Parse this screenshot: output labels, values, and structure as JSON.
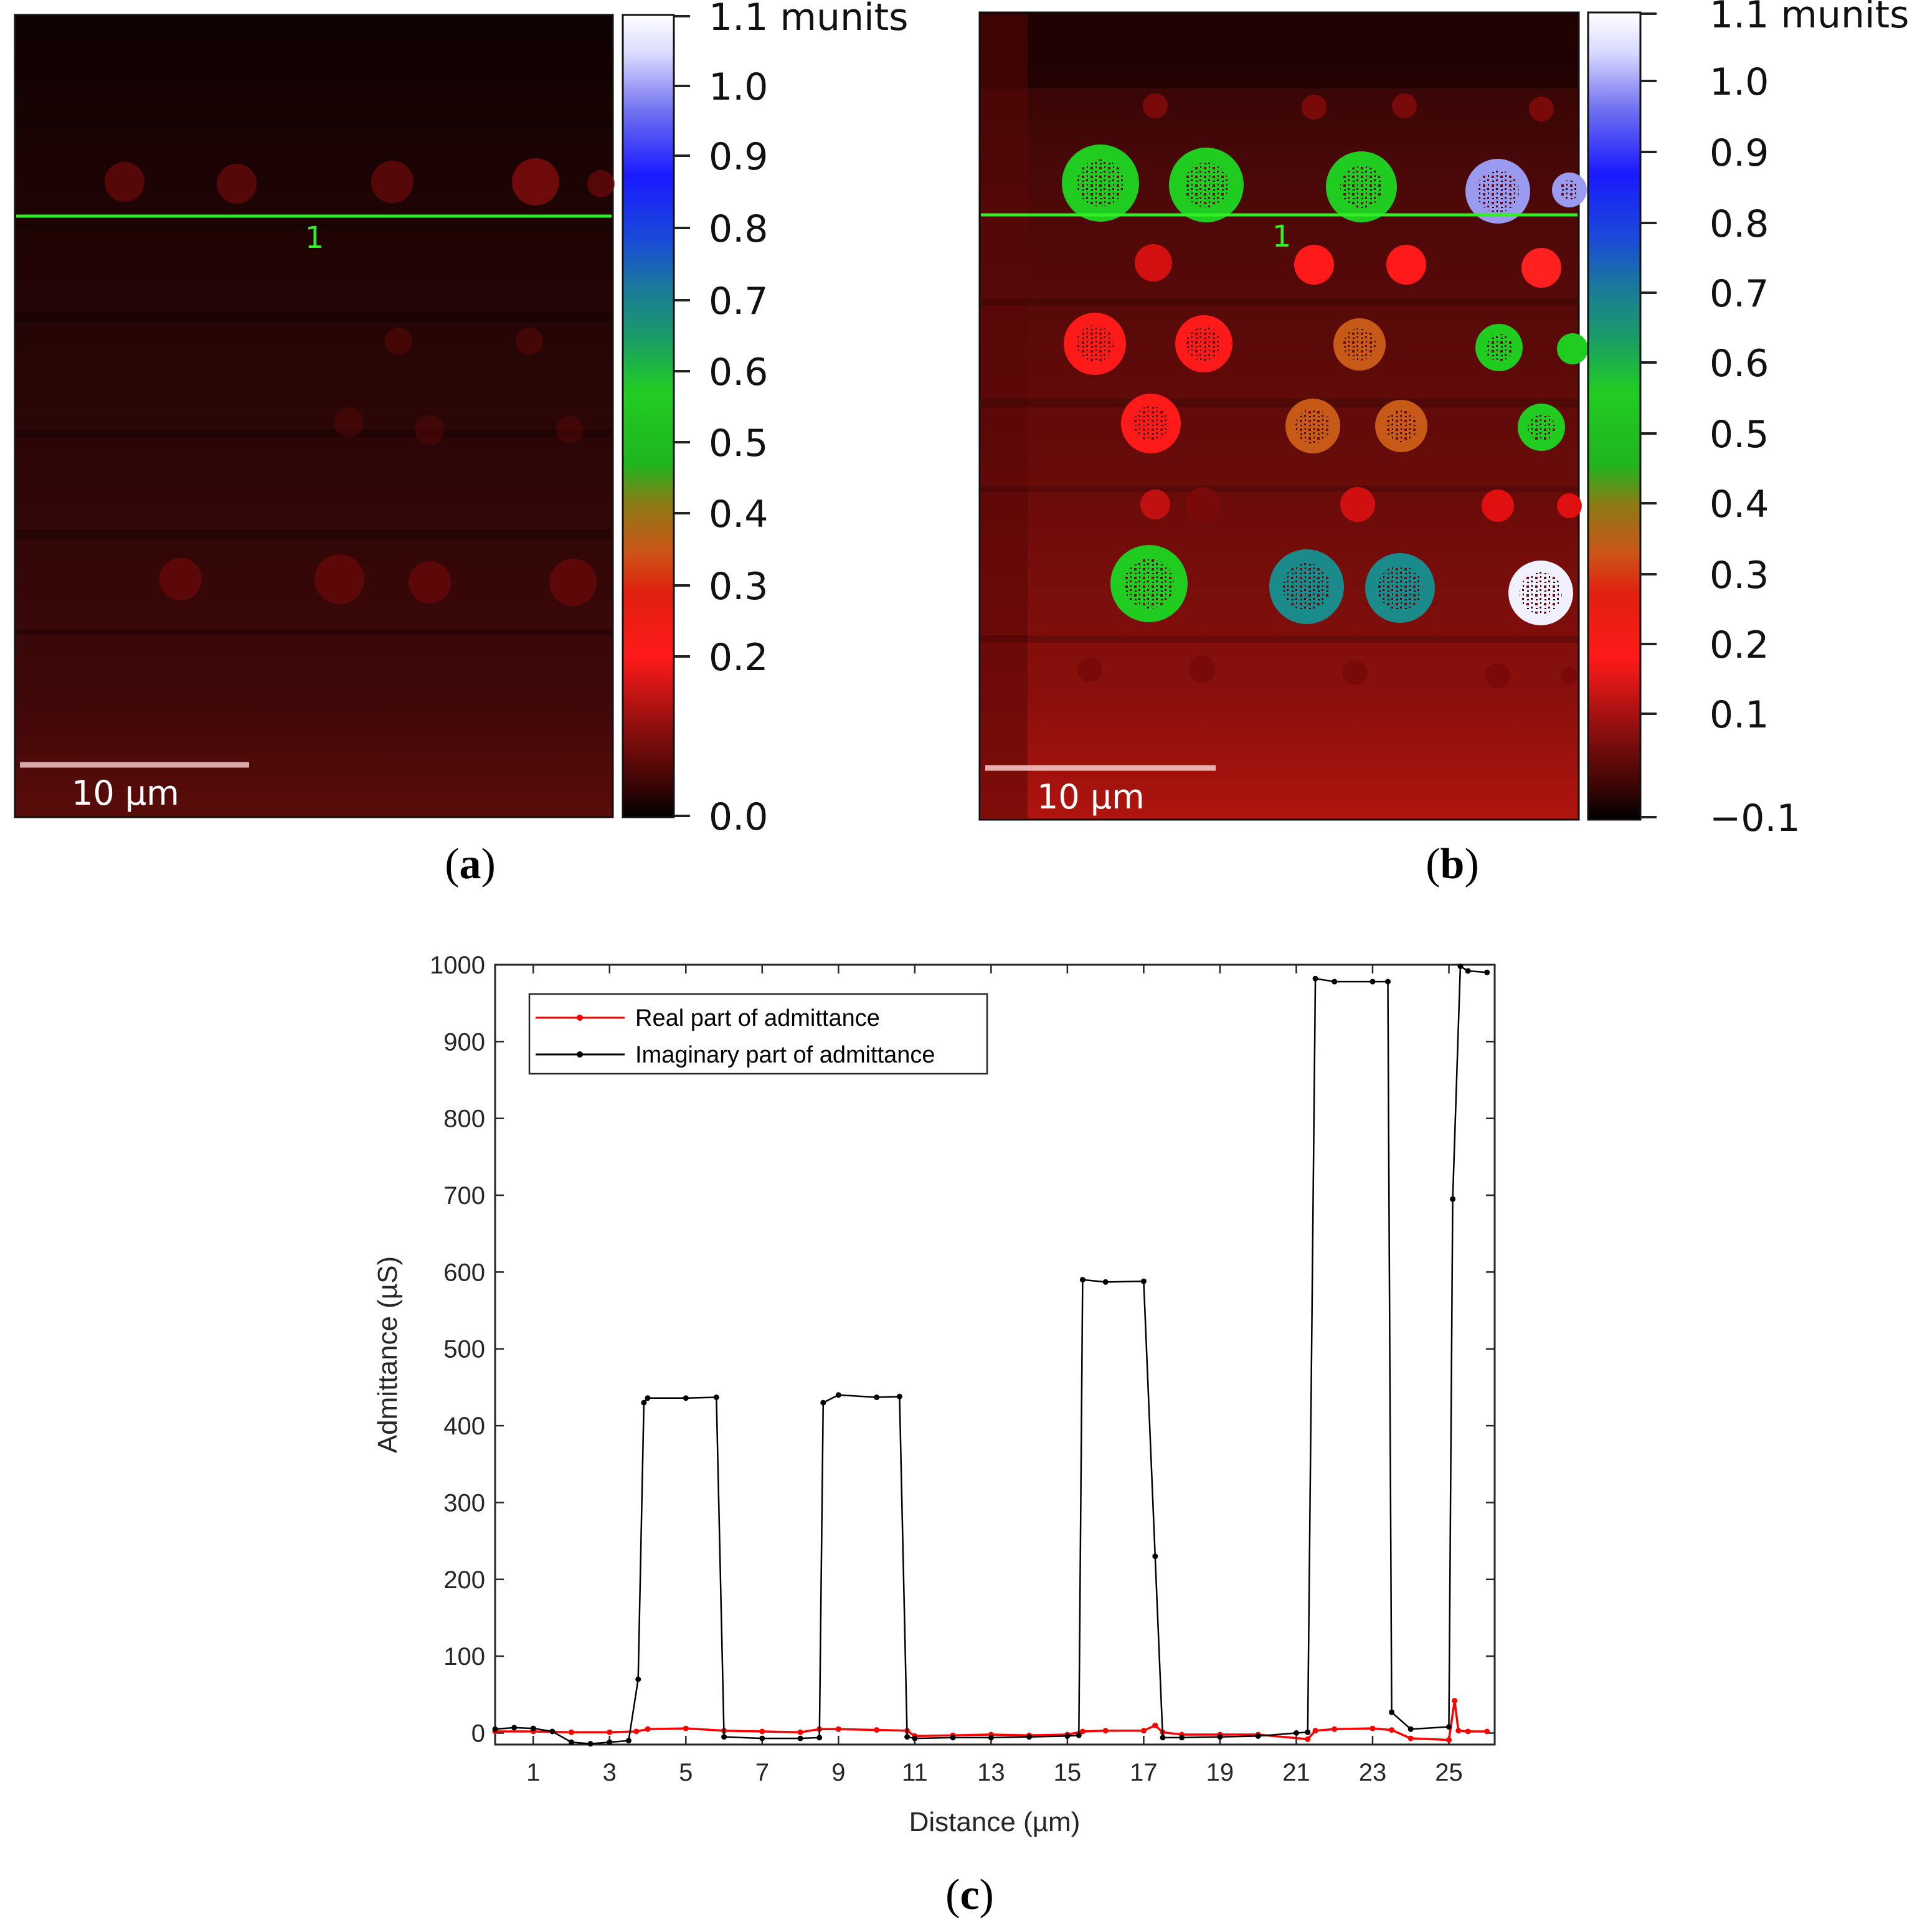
{
  "colors": {
    "map_background": "#2a0604",
    "map_bright": "#b0100c",
    "profile_line": "#33ee22",
    "real_series": "#ff0000",
    "imag_series": "#000000",
    "colorbar_stops": [
      "#000000",
      "#4a0a0a",
      "#cc0a0a",
      "#ff1a1a",
      "#cc5518",
      "#8c7a14",
      "#22b722",
      "#22cc22",
      "#1a8a8a",
      "#1a5ad8",
      "#1a1aff",
      "#7a7af0",
      "#e8e8ff",
      "#ffffff"
    ]
  },
  "panel_a": {
    "label_open": "(",
    "label_letter": "a",
    "label_close": ")",
    "scale_bar_label": "10 µm",
    "profile_marker": "1",
    "colorbar_ticks": [
      "1.1 munits",
      "1.0",
      "0.9",
      "0.8",
      "0.7",
      "0.6",
      "0.5",
      "0.4",
      "0.3",
      "0.2",
      "0.0"
    ]
  },
  "panel_b": {
    "label_open": "(",
    "label_letter": "b",
    "label_close": ")",
    "scale_bar_label": "10 µm",
    "profile_marker": "1",
    "colorbar_ticks": [
      "1.1 munits",
      "1.0",
      "0.9",
      "0.8",
      "0.7",
      "0.6",
      "0.5",
      "0.4",
      "0.3",
      "0.2",
      "0.1",
      "−0.1"
    ]
  },
  "panel_c": {
    "label_open": "(",
    "label_letter": "c",
    "label_close": ")"
  },
  "chart_data": {
    "type": "line",
    "title": "",
    "xlabel": "Distance (µm)",
    "ylabel": "Admittance (µS)",
    "xlim": [
      0,
      26.2
    ],
    "ylim": [
      -15,
      1000
    ],
    "xticks": [
      1,
      3,
      5,
      7,
      9,
      11,
      13,
      15,
      17,
      19,
      21,
      23,
      25
    ],
    "yticks": [
      0,
      100,
      200,
      300,
      400,
      500,
      600,
      700,
      800,
      900,
      1000
    ],
    "legend_position": "top-left",
    "series": [
      {
        "name": "Real part of admittance",
        "color": "#ff0000",
        "x": [
          0,
          1,
          2,
          3,
          3.7,
          4,
          5,
          6,
          7,
          8,
          8.5,
          9,
          10,
          10.8,
          11,
          12,
          13,
          14,
          15,
          15.4,
          16,
          17,
          17.3,
          17.5,
          18,
          19,
          20,
          21.3,
          21.5,
          22,
          23,
          23.5,
          24,
          25,
          25.15,
          25.25,
          25.5,
          26
        ],
        "y": [
          2,
          2,
          1,
          1,
          2,
          5,
          6,
          3,
          2,
          1,
          5,
          5,
          4,
          3,
          -4,
          -3,
          -2,
          -3,
          -2,
          2,
          3,
          3,
          10,
          1,
          -2,
          -2,
          -2,
          -8,
          3,
          5,
          6,
          4,
          -7,
          -9,
          42,
          3,
          2,
          2
        ]
      },
      {
        "name": "Imaginary part of admittance",
        "color": "#000000",
        "x": [
          0,
          0.5,
          1,
          1.5,
          2,
          2.5,
          3,
          3.5,
          3.75,
          3.9,
          4,
          5,
          5.8,
          6,
          7,
          8,
          8.5,
          8.6,
          9,
          10,
          10.6,
          10.8,
          11,
          12,
          13,
          14,
          15,
          15.3,
          15.4,
          16,
          17,
          17.3,
          17.5,
          18,
          19,
          20,
          21,
          21.3,
          21.5,
          22,
          23,
          23.4,
          23.5,
          24,
          25,
          25.1,
          25.3,
          25.5,
          26
        ],
        "y": [
          5,
          7,
          6,
          2,
          -12,
          -14,
          -12,
          -10,
          70,
          430,
          436,
          436,
          437,
          -5,
          -7,
          -7,
          -6,
          430,
          440,
          437,
          438,
          -5,
          -7,
          -6,
          -6,
          -5,
          -4,
          -3,
          590,
          587,
          588,
          230,
          -6,
          -6,
          -5,
          -4,
          0,
          1,
          982,
          978,
          978,
          978,
          27,
          5,
          8,
          695,
          998,
          992,
          990
        ]
      }
    ]
  }
}
